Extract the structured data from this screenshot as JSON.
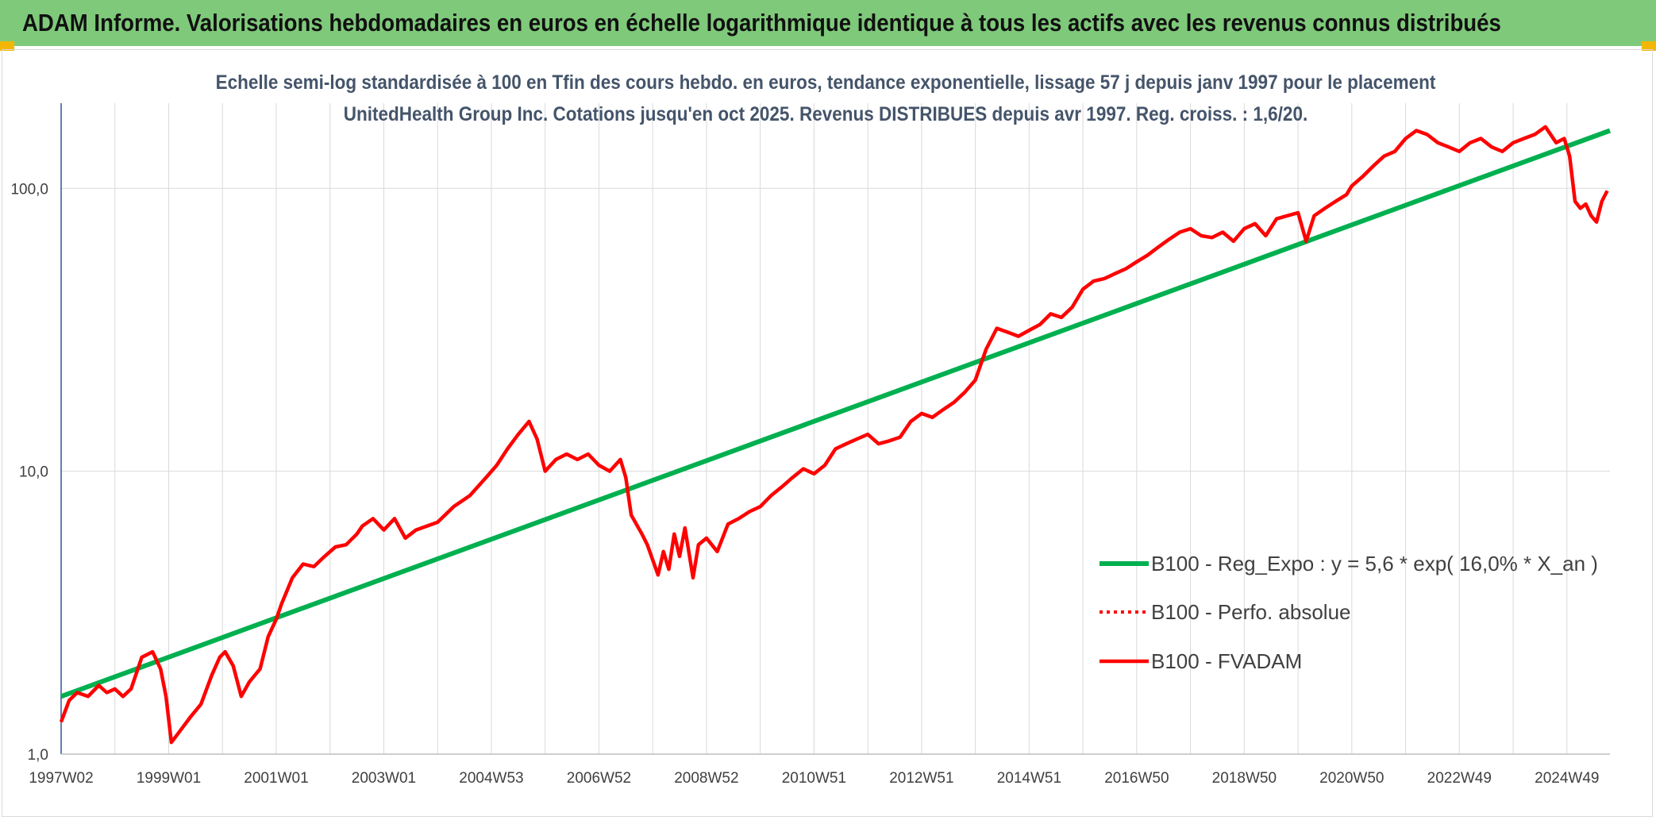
{
  "banner": {
    "title": "ADAM Informe. Valorisations hebdomadaires en euros en échelle logarithmique identique à tous les actifs avec les revenus connus distribués"
  },
  "colors": {
    "banner": "#7fc97a",
    "accent": "#f2b705",
    "regression": "#00b050",
    "series": "#ff0000",
    "grid": "#d9d9d9"
  },
  "chart_data": {
    "type": "line",
    "title": "Echelle semi-log standardisée à 100 en Tfin des cours hebdo. en euros, tendance exponentielle, lissage 57 j depuis janv 1997 pour le placement UnitedHealth Group Inc. Cotations jusqu'en oct 2025. Revenus DISTRIBUES depuis avr 1997. Reg. croiss. : 1,6/20.",
    "y_scale": "log",
    "ylim": [
      1,
      200
    ],
    "y_ticks": [
      {
        "value": 1,
        "label": "1,0"
      },
      {
        "value": 10,
        "label": "10,0"
      },
      {
        "value": 100,
        "label": "100,0"
      }
    ],
    "xlim": [
      1997.0,
      2025.8
    ],
    "x_ticks": [
      {
        "value": 1997.0,
        "label": "1997W02"
      },
      {
        "value": 1999.0,
        "label": "1999W01"
      },
      {
        "value": 2001.0,
        "label": "2001W01"
      },
      {
        "value": 2003.0,
        "label": "2003W01"
      },
      {
        "value": 2005.0,
        "label": "2004W53"
      },
      {
        "value": 2007.0,
        "label": "2006W52"
      },
      {
        "value": 2009.0,
        "label": "2008W52"
      },
      {
        "value": 2011.0,
        "label": "2010W51"
      },
      {
        "value": 2013.0,
        "label": "2012W51"
      },
      {
        "value": 2015.0,
        "label": "2014W51"
      },
      {
        "value": 2017.0,
        "label": "2016W50"
      },
      {
        "value": 2019.0,
        "label": "2018W50"
      },
      {
        "value": 2021.0,
        "label": "2020W50"
      },
      {
        "value": 2023.0,
        "label": "2022W49"
      },
      {
        "value": 2025.0,
        "label": "2024W49"
      }
    ],
    "grid": true,
    "legend_position": "bottom-right",
    "series": [
      {
        "name": "B100 - Reg_Expo : y = 5,6 * exp( 16,0% *  X_an )",
        "color": "#00b050",
        "style": "solid",
        "x": [
          1997.0,
          2025.8
        ],
        "y": [
          1.6,
          160
        ]
      },
      {
        "name": "B100 - Perfo. absolue",
        "color": "#ff0000",
        "style": "dotted",
        "x": [],
        "y": []
      },
      {
        "name": "B100 - FVADAM",
        "color": "#ff0000",
        "style": "solid",
        "x": [
          1997.0,
          1997.15,
          1997.3,
          1997.5,
          1997.7,
          1997.85,
          1998.0,
          1998.15,
          1998.3,
          1998.5,
          1998.7,
          1998.85,
          1998.95,
          1999.05,
          1999.2,
          1999.4,
          1999.6,
          1999.8,
          1999.95,
          2000.05,
          2000.2,
          2000.35,
          2000.5,
          2000.7,
          2000.85,
          2001.0,
          2001.1,
          2001.3,
          2001.5,
          2001.7,
          2001.9,
          2002.1,
          2002.3,
          2002.5,
          2002.6,
          2002.8,
          2003.0,
          2003.2,
          2003.4,
          2003.6,
          2003.8,
          2004.0,
          2004.3,
          2004.6,
          2004.9,
          2005.1,
          2005.3,
          2005.5,
          2005.7,
          2005.85,
          2006.0,
          2006.2,
          2006.4,
          2006.6,
          2006.8,
          2007.0,
          2007.2,
          2007.4,
          2007.5,
          2007.6,
          2007.8,
          2007.9,
          2008.1,
          2008.2,
          2008.3,
          2008.4,
          2008.5,
          2008.6,
          2008.75,
          2008.85,
          2009.0,
          2009.2,
          2009.4,
          2009.6,
          2009.8,
          2010.0,
          2010.2,
          2010.4,
          2010.6,
          2010.8,
          2011.0,
          2011.2,
          2011.4,
          2011.6,
          2011.8,
          2012.0,
          2012.2,
          2012.4,
          2012.6,
          2012.8,
          2013.0,
          2013.2,
          2013.4,
          2013.6,
          2013.8,
          2014.0,
          2014.2,
          2014.4,
          2014.6,
          2014.8,
          2015.0,
          2015.2,
          2015.4,
          2015.6,
          2015.8,
          2016.0,
          2016.2,
          2016.4,
          2016.6,
          2016.8,
          2017.0,
          2017.2,
          2017.4,
          2017.6,
          2017.8,
          2018.0,
          2018.2,
          2018.4,
          2018.6,
          2018.8,
          2019.0,
          2019.2,
          2019.4,
          2019.6,
          2019.8,
          2020.0,
          2020.15,
          2020.3,
          2020.5,
          2020.7,
          2020.9,
          2021.0,
          2021.2,
          2021.4,
          2021.6,
          2021.8,
          2022.0,
          2022.2,
          2022.4,
          2022.6,
          2022.8,
          2023.0,
          2023.2,
          2023.4,
          2023.6,
          2023.8,
          2024.0,
          2024.2,
          2024.4,
          2024.6,
          2024.8,
          2024.95,
          2025.05,
          2025.15,
          2025.25,
          2025.35,
          2025.45,
          2025.55,
          2025.65,
          2025.75
        ],
        "y": [
          1.3,
          1.55,
          1.65,
          1.6,
          1.75,
          1.65,
          1.7,
          1.6,
          1.7,
          2.2,
          2.3,
          2.0,
          1.6,
          1.1,
          1.2,
          1.35,
          1.5,
          1.9,
          2.2,
          2.3,
          2.05,
          1.6,
          1.8,
          2.0,
          2.6,
          3.0,
          3.4,
          4.2,
          4.7,
          4.6,
          5.0,
          5.4,
          5.5,
          6.0,
          6.4,
          6.8,
          6.2,
          6.8,
          5.8,
          6.2,
          6.4,
          6.6,
          7.5,
          8.2,
          9.5,
          10.5,
          12.0,
          13.5,
          15.0,
          13.0,
          10.0,
          11.0,
          11.5,
          11.0,
          11.5,
          10.5,
          10.0,
          11.0,
          9.5,
          7.0,
          6.0,
          5.5,
          4.3,
          5.2,
          4.5,
          6.0,
          5.0,
          6.3,
          4.2,
          5.5,
          5.8,
          5.2,
          6.5,
          6.8,
          7.2,
          7.5,
          8.2,
          8.8,
          9.5,
          10.2,
          9.8,
          10.5,
          12.0,
          12.5,
          13.0,
          13.5,
          12.5,
          12.8,
          13.2,
          15.0,
          16.0,
          15.5,
          16.5,
          17.5,
          19.0,
          21.0,
          27.0,
          32.0,
          31.0,
          30.0,
          31.5,
          33.0,
          36.0,
          35.0,
          38.0,
          44.0,
          47.0,
          48.0,
          50.0,
          52.0,
          55.0,
          58.0,
          62.0,
          66.0,
          70.0,
          72.0,
          68.0,
          67.0,
          70.0,
          65.0,
          72.0,
          75.0,
          68.0,
          78.0,
          80.0,
          82.0,
          65.0,
          80.0,
          85.0,
          90.0,
          95.0,
          102.0,
          110.0,
          120.0,
          130.0,
          135.0,
          150.0,
          160.0,
          155.0,
          145.0,
          140.0,
          135.0,
          145.0,
          150.0,
          140.0,
          135.0,
          145.0,
          150.0,
          155.0,
          165.0,
          145.0,
          150.0,
          130.0,
          90.0,
          85.0,
          88.0,
          80.0,
          76.0,
          90.0,
          98.0
        ]
      }
    ]
  }
}
